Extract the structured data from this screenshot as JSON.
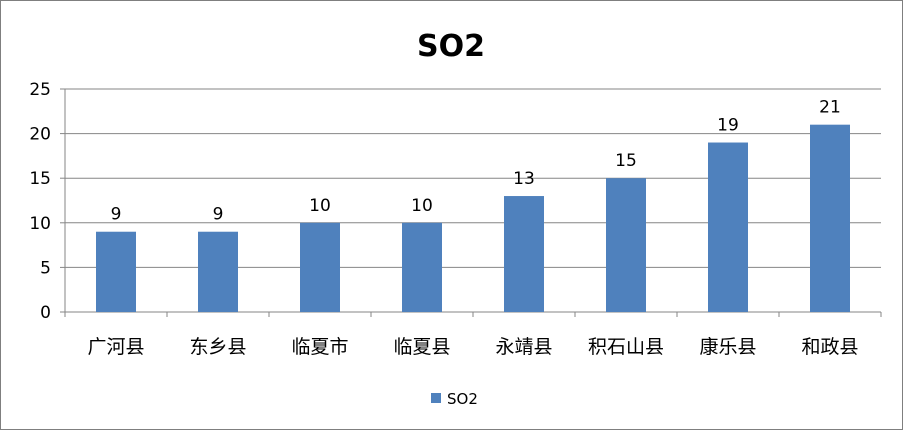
{
  "chart_data": {
    "type": "bar",
    "title": "SO2",
    "categories": [
      "广河县",
      "东乡县",
      "临夏市",
      "临夏县",
      "永靖县",
      "积石山县",
      "康乐县",
      "和政县"
    ],
    "series": [
      {
        "name": "SO2",
        "values": [
          9,
          9,
          10,
          10,
          13,
          15,
          19,
          21
        ],
        "color": "#4f81bd"
      }
    ],
    "ylim": [
      0,
      25
    ],
    "yticks": [
      0,
      5,
      10,
      15,
      20,
      25
    ],
    "grid": true,
    "legend_position": "bottom",
    "data_labels": true,
    "colors": {
      "bar": "#4f81bd",
      "gridline": "#868686",
      "axis": "#868686"
    }
  }
}
